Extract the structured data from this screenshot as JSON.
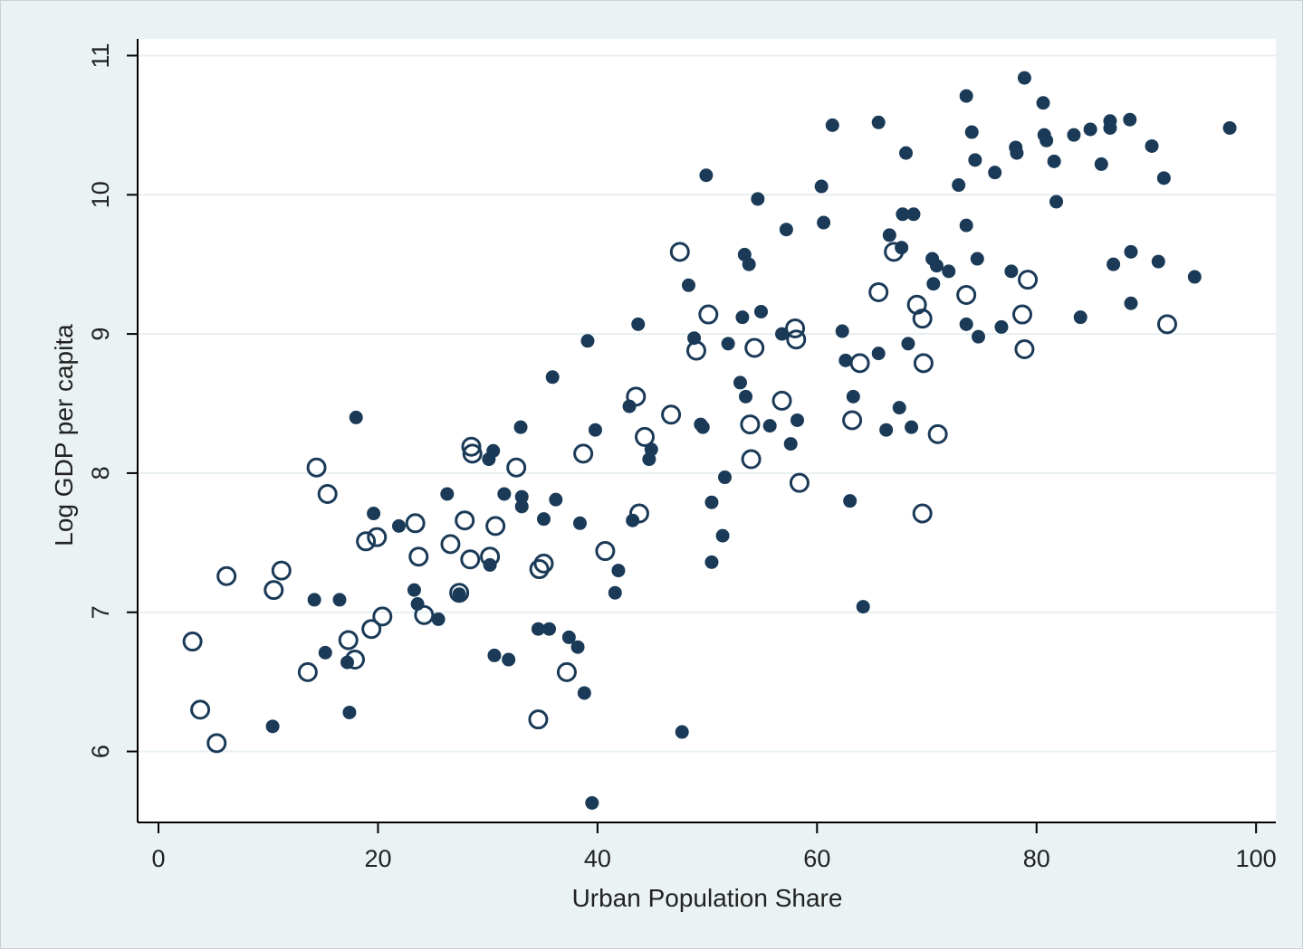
{
  "chart_data": {
    "type": "scatter",
    "xlabel": "Urban Population Share",
    "ylabel": "Log GDP per capita",
    "xlim": [
      -1.9,
      101.8
    ],
    "ylim": [
      5.49,
      11.12
    ],
    "x_ticks": [
      0,
      20,
      40,
      60,
      80,
      100
    ],
    "y_ticks": [
      6,
      7,
      8,
      9,
      10,
      11
    ],
    "x_tick_labels": [
      "0",
      "20",
      "40",
      "60",
      "80",
      "100"
    ],
    "y_tick_labels": [
      "6",
      "7",
      "8",
      "9",
      "10",
      "11"
    ],
    "grid": "horizontal",
    "colors": {
      "panel": "#eaf2f3",
      "plot": "#ffffff",
      "grid": "#e8eff0",
      "marker": "#1a3a58",
      "axis": "#000000"
    },
    "series": [
      {
        "marker": "filled",
        "points": [
          [
            10.4,
            6.18
          ],
          [
            14.2,
            7.09
          ],
          [
            15.2,
            6.71
          ],
          [
            16.5,
            7.09
          ],
          [
            17.2,
            6.64
          ],
          [
            17.4,
            6.28
          ],
          [
            18.0,
            8.4
          ],
          [
            19.6,
            7.71
          ],
          [
            21.9,
            7.62
          ],
          [
            23.3,
            7.16
          ],
          [
            23.6,
            7.06
          ],
          [
            25.5,
            6.95
          ],
          [
            26.3,
            7.85
          ],
          [
            27.4,
            7.13
          ],
          [
            30.1,
            8.1
          ],
          [
            30.2,
            7.34
          ],
          [
            30.5,
            8.16
          ],
          [
            30.6,
            6.69
          ],
          [
            31.5,
            7.85
          ],
          [
            31.9,
            6.66
          ],
          [
            33.0,
            8.33
          ],
          [
            33.1,
            7.83
          ],
          [
            33.1,
            7.76
          ],
          [
            34.6,
            6.88
          ],
          [
            35.1,
            7.67
          ],
          [
            35.6,
            6.88
          ],
          [
            35.9,
            8.69
          ],
          [
            36.2,
            7.81
          ],
          [
            37.4,
            6.82
          ],
          [
            38.2,
            6.75
          ],
          [
            38.4,
            7.64
          ],
          [
            38.8,
            6.42
          ],
          [
            39.1,
            8.95
          ],
          [
            39.5,
            5.63
          ],
          [
            39.8,
            8.31
          ],
          [
            41.6,
            7.14
          ],
          [
            41.9,
            7.3
          ],
          [
            42.9,
            8.48
          ],
          [
            43.2,
            7.66
          ],
          [
            43.7,
            9.07
          ],
          [
            44.7,
            8.1
          ],
          [
            44.9,
            8.17
          ],
          [
            47.7,
            6.14
          ],
          [
            48.3,
            9.35
          ],
          [
            48.8,
            8.97
          ],
          [
            49.4,
            8.35
          ],
          [
            49.6,
            8.33
          ],
          [
            49.9,
            10.14
          ],
          [
            50.4,
            7.79
          ],
          [
            50.4,
            7.36
          ],
          [
            51.4,
            7.55
          ],
          [
            51.6,
            7.97
          ],
          [
            51.9,
            8.93
          ],
          [
            53.0,
            8.65
          ],
          [
            53.2,
            9.12
          ],
          [
            53.4,
            9.57
          ],
          [
            53.5,
            8.55
          ],
          [
            53.8,
            9.5
          ],
          [
            54.6,
            9.97
          ],
          [
            54.9,
            9.16
          ],
          [
            55.7,
            8.34
          ],
          [
            56.8,
            9.0
          ],
          [
            57.2,
            9.75
          ],
          [
            57.6,
            8.21
          ],
          [
            58.2,
            8.38
          ],
          [
            60.4,
            10.06
          ],
          [
            60.6,
            9.8
          ],
          [
            61.4,
            10.5
          ],
          [
            62.3,
            9.02
          ],
          [
            62.6,
            8.81
          ],
          [
            63.0,
            7.8
          ],
          [
            63.3,
            8.55
          ],
          [
            64.2,
            7.04
          ],
          [
            65.6,
            10.52
          ],
          [
            65.6,
            8.86
          ],
          [
            66.3,
            8.31
          ],
          [
            66.6,
            9.71
          ],
          [
            67.5,
            8.47
          ],
          [
            67.7,
            9.62
          ],
          [
            67.8,
            9.86
          ],
          [
            68.1,
            10.3
          ],
          [
            68.3,
            8.93
          ],
          [
            68.6,
            8.33
          ],
          [
            68.8,
            9.86
          ],
          [
            70.5,
            9.54
          ],
          [
            70.6,
            9.36
          ],
          [
            70.9,
            9.49
          ],
          [
            72.0,
            9.45
          ],
          [
            72.9,
            10.07
          ],
          [
            73.6,
            10.71
          ],
          [
            73.6,
            9.07
          ],
          [
            73.6,
            9.78
          ],
          [
            74.1,
            10.45
          ],
          [
            74.4,
            10.25
          ],
          [
            74.6,
            9.54
          ],
          [
            74.7,
            8.98
          ],
          [
            76.2,
            10.16
          ],
          [
            76.8,
            9.05
          ],
          [
            77.7,
            9.45
          ],
          [
            78.1,
            10.34
          ],
          [
            78.2,
            10.3
          ],
          [
            78.9,
            10.84
          ],
          [
            80.6,
            10.66
          ],
          [
            80.7,
            10.43
          ],
          [
            80.9,
            10.39
          ],
          [
            81.6,
            10.24
          ],
          [
            81.8,
            9.95
          ],
          [
            83.4,
            10.43
          ],
          [
            84.0,
            9.12
          ],
          [
            84.9,
            10.47
          ],
          [
            85.9,
            10.22
          ],
          [
            86.7,
            10.53
          ],
          [
            86.7,
            10.48
          ],
          [
            87.0,
            9.5
          ],
          [
            88.5,
            10.54
          ],
          [
            88.6,
            9.59
          ],
          [
            88.6,
            9.22
          ],
          [
            90.5,
            10.35
          ],
          [
            91.1,
            9.52
          ],
          [
            91.6,
            10.12
          ],
          [
            94.4,
            9.41
          ],
          [
            97.6,
            10.48
          ]
        ]
      },
      {
        "marker": "hollow",
        "points": [
          [
            3.1,
            6.79
          ],
          [
            3.8,
            6.3
          ],
          [
            5.3,
            6.06
          ],
          [
            6.2,
            7.26
          ],
          [
            10.5,
            7.16
          ],
          [
            11.2,
            7.3
          ],
          [
            13.6,
            6.57
          ],
          [
            14.4,
            8.04
          ],
          [
            15.4,
            7.85
          ],
          [
            17.3,
            6.8
          ],
          [
            17.9,
            6.66
          ],
          [
            18.9,
            7.51
          ],
          [
            19.4,
            6.88
          ],
          [
            19.9,
            7.54
          ],
          [
            20.4,
            6.97
          ],
          [
            23.4,
            7.64
          ],
          [
            23.7,
            7.4
          ],
          [
            24.2,
            6.98
          ],
          [
            26.6,
            7.49
          ],
          [
            27.4,
            7.14
          ],
          [
            27.9,
            7.66
          ],
          [
            28.4,
            7.38
          ],
          [
            28.5,
            8.19
          ],
          [
            28.6,
            8.14
          ],
          [
            30.2,
            7.4
          ],
          [
            30.7,
            7.62
          ],
          [
            32.6,
            8.04
          ],
          [
            34.6,
            6.23
          ],
          [
            34.7,
            7.31
          ],
          [
            35.1,
            7.35
          ],
          [
            37.2,
            6.57
          ],
          [
            38.7,
            8.14
          ],
          [
            40.7,
            7.44
          ],
          [
            43.5,
            8.55
          ],
          [
            43.8,
            7.71
          ],
          [
            44.3,
            8.26
          ],
          [
            46.7,
            8.42
          ],
          [
            47.5,
            9.59
          ],
          [
            49.0,
            8.88
          ],
          [
            50.1,
            9.14
          ],
          [
            53.9,
            8.35
          ],
          [
            54.0,
            8.1
          ],
          [
            54.3,
            8.9
          ],
          [
            56.8,
            8.52
          ],
          [
            58.0,
            9.04
          ],
          [
            58.1,
            8.96
          ],
          [
            58.4,
            7.93
          ],
          [
            63.2,
            8.38
          ],
          [
            63.9,
            8.79
          ],
          [
            65.6,
            9.3
          ],
          [
            67.0,
            9.59
          ],
          [
            69.1,
            9.21
          ],
          [
            69.6,
            9.11
          ],
          [
            69.6,
            7.71
          ],
          [
            69.7,
            8.79
          ],
          [
            71.0,
            8.28
          ],
          [
            73.6,
            9.28
          ],
          [
            78.7,
            9.14
          ],
          [
            78.9,
            8.89
          ],
          [
            79.2,
            9.39
          ],
          [
            91.9,
            9.07
          ]
        ]
      }
    ]
  }
}
